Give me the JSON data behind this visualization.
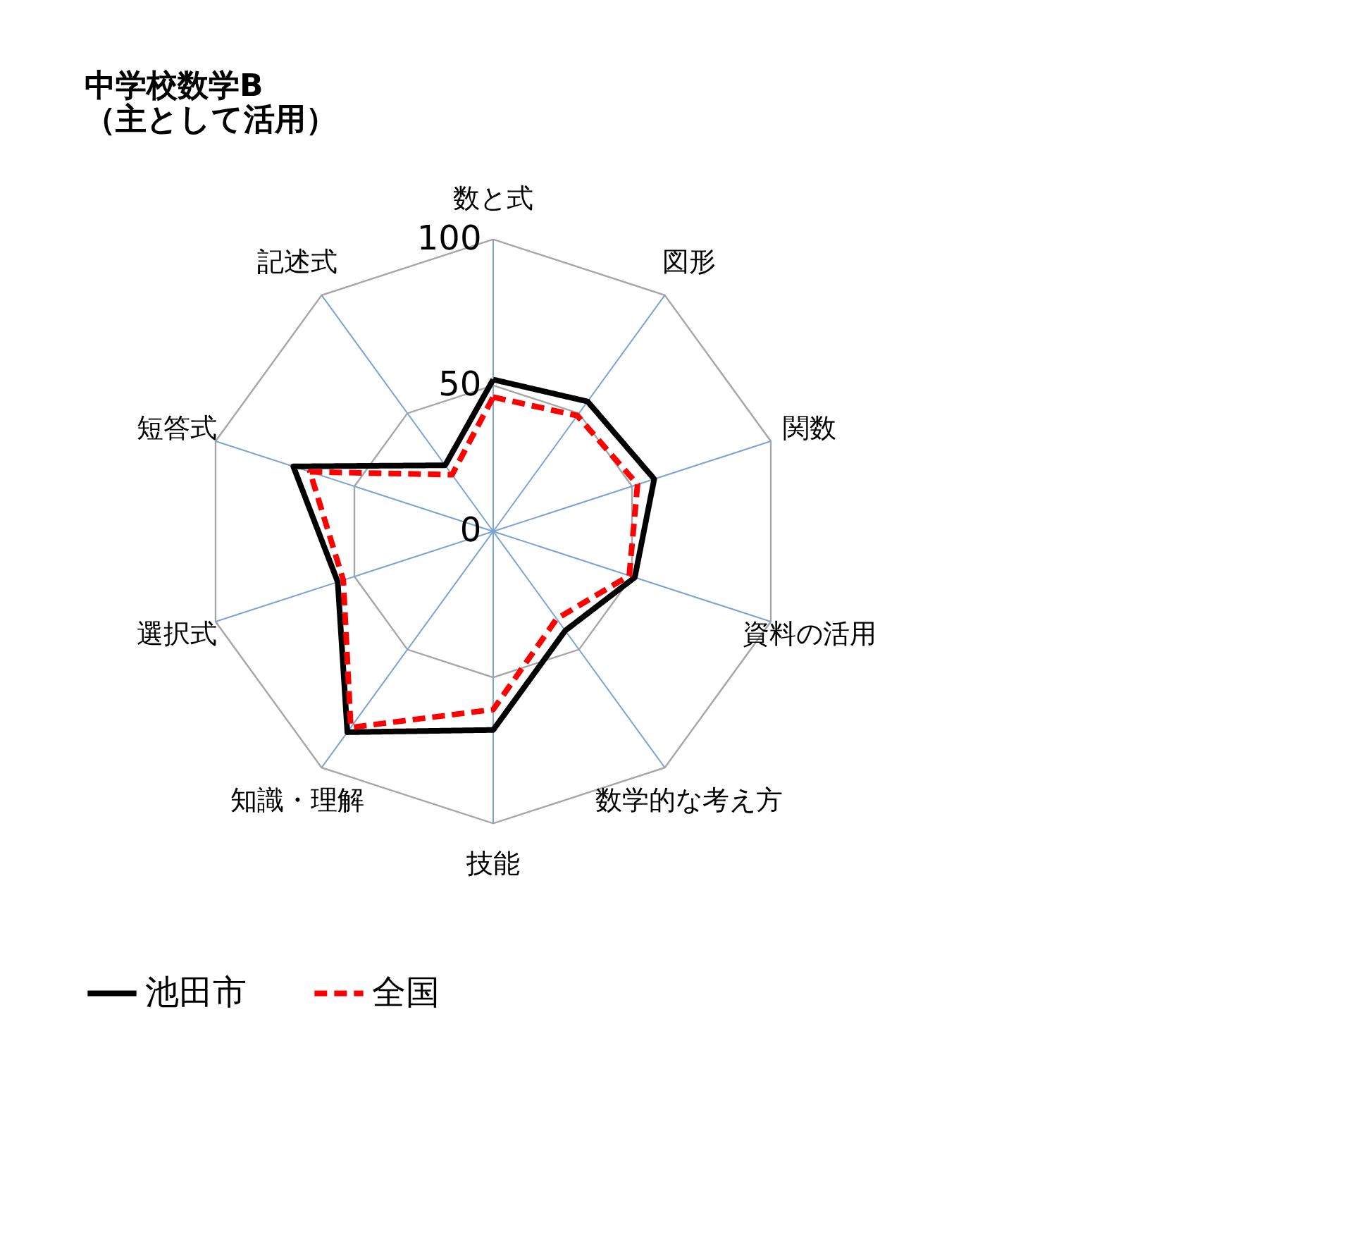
{
  "chart_data": {
    "type": "radar",
    "title": "中学校数学B\n（主として活用）",
    "categories": [
      "数と式",
      "図形",
      "関数",
      "資料の活用",
      "数学的な考え方",
      "技能",
      "知識・理解",
      "選択式",
      "短答式",
      "記述式"
    ],
    "series": [
      {
        "name": "池田市",
        "color": "#000000",
        "line_style": "solid",
        "values": [
          52,
          55,
          58,
          51,
          42,
          68,
          85,
          56,
          72,
          28
        ]
      },
      {
        "name": "全国",
        "color": "#ff0000",
        "line_style": "dashed",
        "values": [
          46,
          49,
          52,
          49,
          37,
          61,
          83,
          54,
          66,
          24
        ]
      }
    ],
    "ylim": [
      0,
      100
    ],
    "yticks": [
      0,
      50,
      100
    ],
    "grid": true,
    "legend": "bottom",
    "marker": "none"
  }
}
